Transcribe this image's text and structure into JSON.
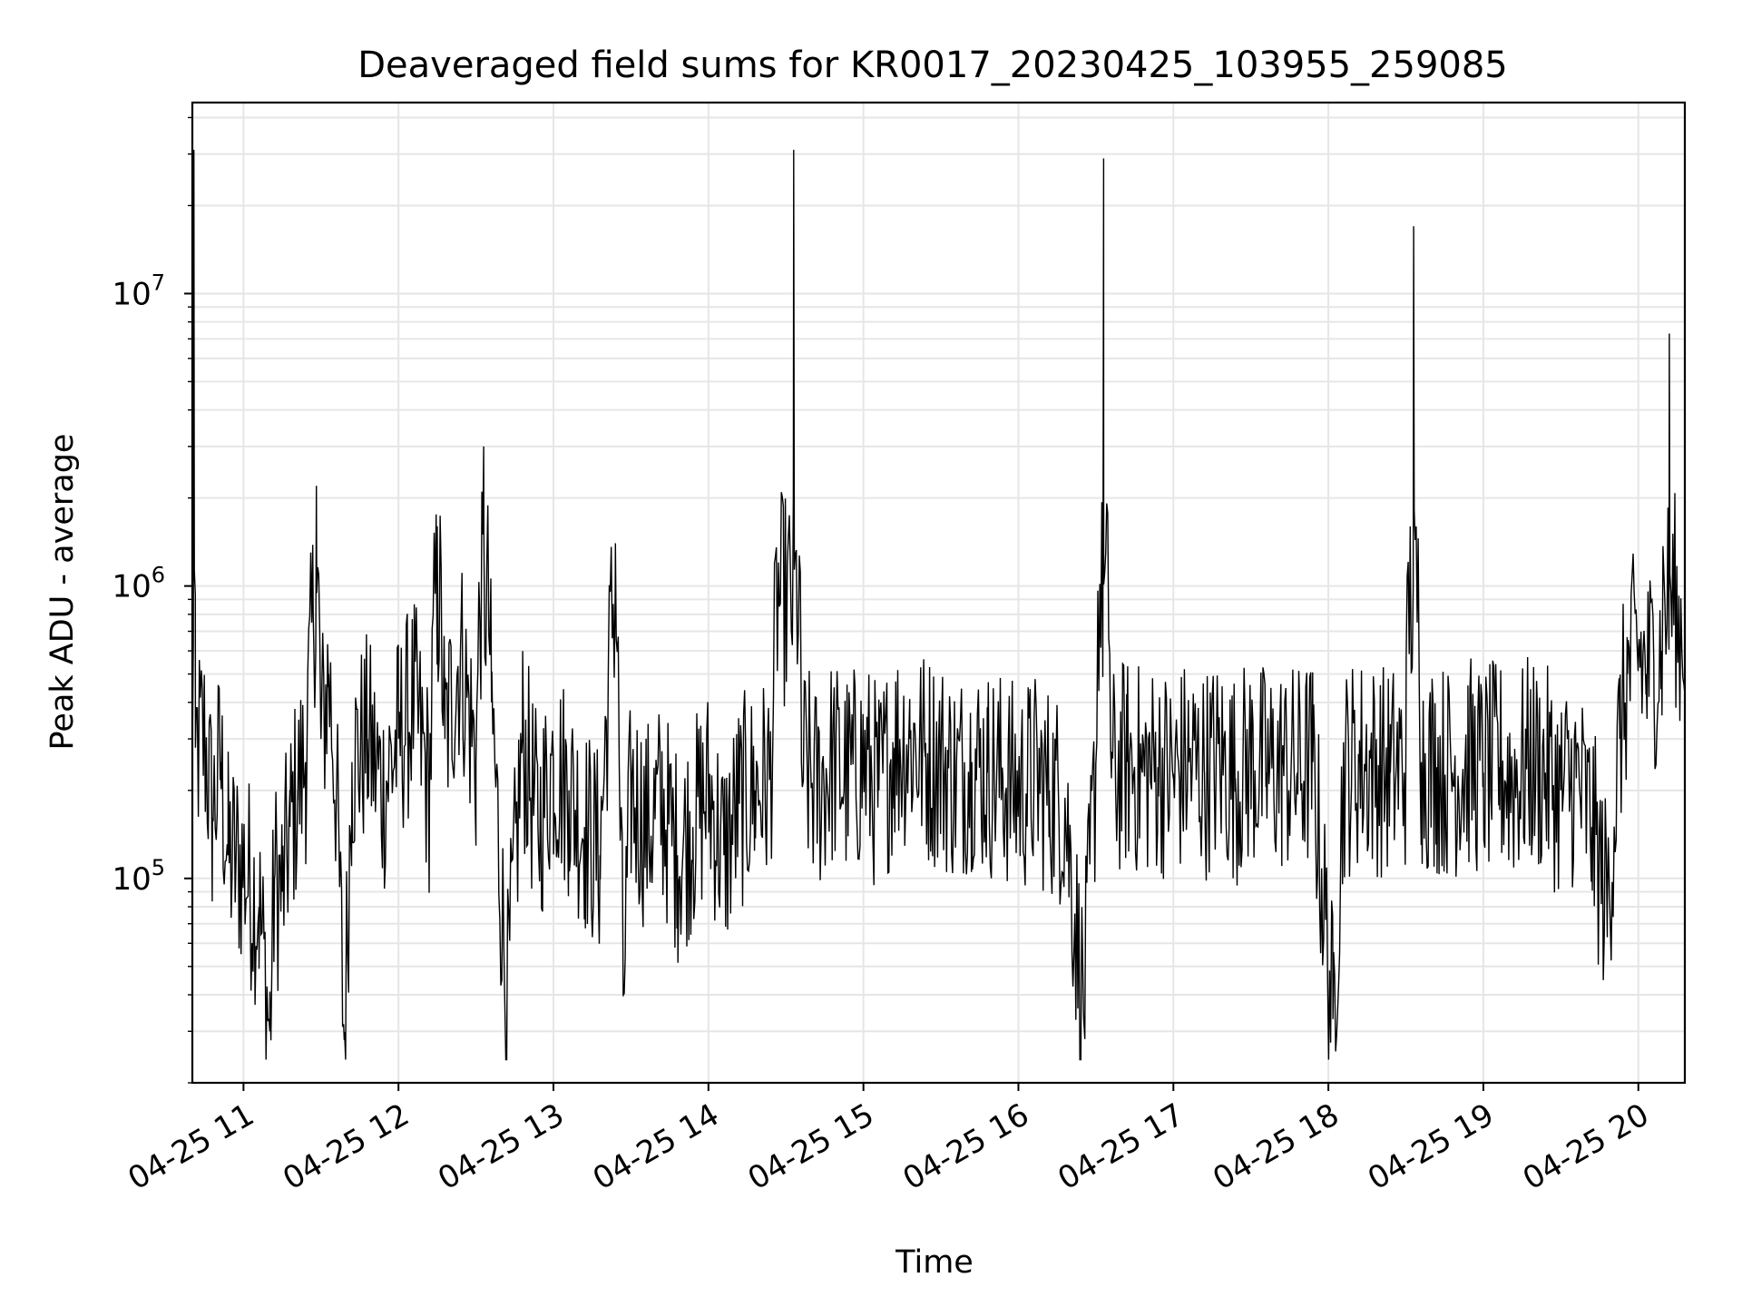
{
  "chart_data": {
    "type": "line",
    "title": "Deaveraged field sums for KR0017_20230425_103955_259085",
    "xlabel": "Time",
    "ylabel": "Peak ADU - average",
    "x_axis": {
      "unit": "hours",
      "range": [
        10.67,
        20.3
      ],
      "ticks": [
        11,
        12,
        13,
        14,
        15,
        16,
        17,
        18,
        19,
        20
      ],
      "tick_labels": [
        "04-25 11",
        "04-25 12",
        "04-25 13",
        "04-25 14",
        "04-25 15",
        "04-25 16",
        "04-25 17",
        "04-25 18",
        "04-25 19",
        "04-25 20"
      ]
    },
    "y_axis": {
      "scale": "log",
      "range": [
        20000,
        45000000
      ],
      "major_ticks": [
        100000,
        1000000,
        10000000
      ],
      "tick_base": "10",
      "tick_exponents": [
        "5",
        "6",
        "7"
      ]
    },
    "grid": true,
    "line_color": "#000000",
    "series": [
      {
        "sampled_points": [
          [
            10.67,
            200000
          ],
          [
            10.68,
            31000000
          ],
          [
            10.69,
            280000
          ],
          [
            10.75,
            300000
          ],
          [
            10.8,
            160000
          ],
          [
            10.85,
            250000
          ],
          [
            10.9,
            120000
          ],
          [
            11.0,
            110000
          ],
          [
            11.1,
            80000
          ],
          [
            11.17,
            30000
          ],
          [
            11.2,
            100000
          ],
          [
            11.25,
            90000
          ],
          [
            11.3,
            150000
          ],
          [
            11.35,
            200000
          ],
          [
            11.4,
            250000
          ],
          [
            11.45,
            800000
          ],
          [
            11.47,
            2200000
          ],
          [
            11.5,
            300000
          ],
          [
            11.55,
            500000
          ],
          [
            11.6,
            200000
          ],
          [
            11.65,
            28000
          ],
          [
            11.7,
            250000
          ],
          [
            11.8,
            300000
          ],
          [
            11.9,
            200000
          ],
          [
            12.0,
            300000
          ],
          [
            12.1,
            400000
          ],
          [
            12.2,
            200000
          ],
          [
            12.25,
            1600000
          ],
          [
            12.3,
            300000
          ],
          [
            12.4,
            600000
          ],
          [
            12.5,
            250000
          ],
          [
            12.55,
            3000000
          ],
          [
            12.6,
            400000
          ],
          [
            12.7,
            36000
          ],
          [
            12.8,
            300000
          ],
          [
            12.9,
            150000
          ],
          [
            13.0,
            250000
          ],
          [
            13.1,
            200000
          ],
          [
            13.2,
            150000
          ],
          [
            13.3,
            120000
          ],
          [
            13.4,
            1400000
          ],
          [
            13.45,
            40000
          ],
          [
            13.5,
            200000
          ],
          [
            13.6,
            150000
          ],
          [
            13.7,
            180000
          ],
          [
            13.8,
            120000
          ],
          [
            13.9,
            150000
          ],
          [
            14.0,
            200000
          ],
          [
            14.1,
            120000
          ],
          [
            14.2,
            180000
          ],
          [
            14.3,
            200000
          ],
          [
            14.4,
            220000
          ],
          [
            14.55,
            31000000
          ],
          [
            14.6,
            250000
          ],
          [
            14.7,
            200000
          ],
          [
            14.8,
            250000
          ],
          [
            14.9,
            220000
          ],
          [
            15.0,
            250000
          ],
          [
            15.1,
            200000
          ],
          [
            15.2,
            280000
          ],
          [
            15.3,
            300000
          ],
          [
            15.4,
            260000
          ],
          [
            15.5,
            250000
          ],
          [
            15.6,
            220000
          ],
          [
            15.7,
            250000
          ],
          [
            15.8,
            230000
          ],
          [
            15.9,
            220000
          ],
          [
            16.0,
            200000
          ],
          [
            16.1,
            220000
          ],
          [
            16.2,
            200000
          ],
          [
            16.3,
            180000
          ],
          [
            16.42,
            35000
          ],
          [
            16.5,
            250000
          ],
          [
            16.55,
            29000000
          ],
          [
            16.6,
            220000
          ],
          [
            16.7,
            250000
          ],
          [
            16.8,
            230000
          ],
          [
            16.9,
            240000
          ],
          [
            17.0,
            220000
          ],
          [
            17.1,
            250000
          ],
          [
            17.2,
            230000
          ],
          [
            17.3,
            250000
          ],
          [
            17.4,
            220000
          ],
          [
            17.5,
            250000
          ],
          [
            17.6,
            230000
          ],
          [
            17.7,
            240000
          ],
          [
            17.8,
            230000
          ],
          [
            17.9,
            250000
          ],
          [
            18.03,
            33000
          ],
          [
            18.1,
            230000
          ],
          [
            18.2,
            250000
          ],
          [
            18.3,
            240000
          ],
          [
            18.4,
            230000
          ],
          [
            18.5,
            250000
          ],
          [
            18.55,
            17000000
          ],
          [
            18.6,
            250000
          ],
          [
            18.7,
            240000
          ],
          [
            18.8,
            230000
          ],
          [
            18.9,
            250000
          ],
          [
            19.0,
            230000
          ],
          [
            19.1,
            240000
          ],
          [
            19.2,
            220000
          ],
          [
            19.3,
            250000
          ],
          [
            19.4,
            230000
          ],
          [
            19.5,
            200000
          ],
          [
            19.6,
            220000
          ],
          [
            19.7,
            150000
          ],
          [
            19.8,
            80000
          ],
          [
            19.88,
            300000
          ],
          [
            19.93,
            500000
          ],
          [
            20.0,
            600000
          ],
          [
            20.05,
            500000
          ],
          [
            20.1,
            550000
          ],
          [
            20.15,
            600000
          ],
          [
            20.2,
            7300000
          ],
          [
            20.25,
            700000
          ],
          [
            20.3,
            750000
          ]
        ]
      }
    ]
  }
}
